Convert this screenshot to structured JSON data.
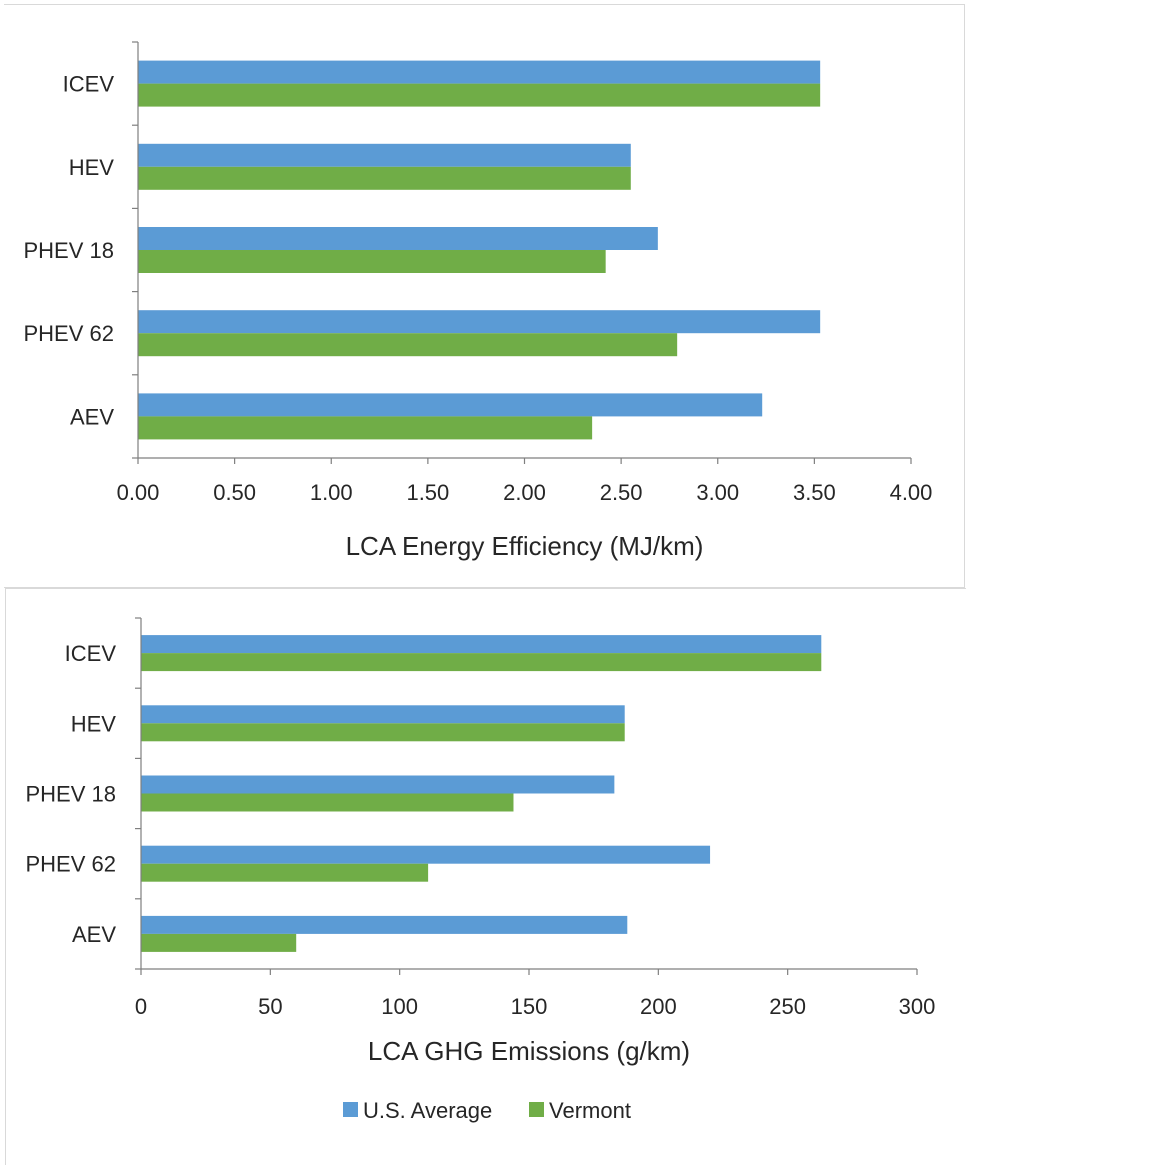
{
  "chart_data": [
    {
      "type": "bar",
      "orientation": "horizontal",
      "categories": [
        "ICEV",
        "HEV",
        "PHEV 18",
        "PHEV 62",
        "AEV"
      ],
      "series": [
        {
          "name": "U.S. Average",
          "values": [
            3.53,
            2.55,
            2.69,
            3.53,
            3.23
          ]
        },
        {
          "name": "Vermont",
          "values": [
            3.53,
            2.55,
            2.42,
            2.79,
            2.35
          ]
        }
      ],
      "xlabel": "LCA Energy Efficiency (MJ/km)",
      "xlim": [
        0,
        4
      ],
      "ticks": [
        "0.00",
        "0.50",
        "1.00",
        "1.50",
        "2.00",
        "2.50",
        "3.00",
        "3.50",
        "4.00"
      ],
      "grid": false
    },
    {
      "type": "bar",
      "orientation": "horizontal",
      "categories": [
        "ICEV",
        "HEV",
        "PHEV 18",
        "PHEV 62",
        "AEV"
      ],
      "series": [
        {
          "name": "U.S. Average",
          "values": [
            263,
            187,
            183,
            220,
            188
          ]
        },
        {
          "name": "Vermont",
          "values": [
            263,
            187,
            144,
            111,
            60
          ]
        }
      ],
      "xlabel": "LCA GHG Emissions (g/km)",
      "xlim": [
        0,
        300
      ],
      "ticks": [
        "0",
        "50",
        "100",
        "150",
        "200",
        "250",
        "300"
      ],
      "grid": false,
      "legend": "bottom"
    }
  ],
  "colors": {
    "us_average": "#5b9bd5",
    "vermont": "#70ad47"
  }
}
